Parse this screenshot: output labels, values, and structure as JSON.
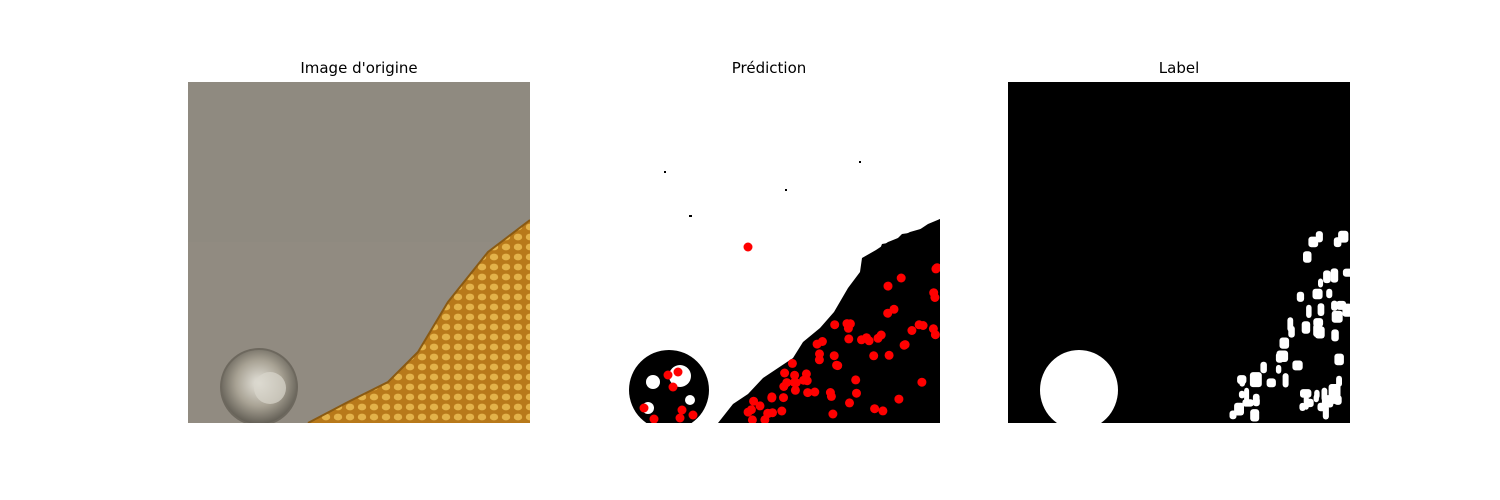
{
  "panels": [
    {
      "title": "Image d'origine"
    },
    {
      "title": "Prédiction"
    },
    {
      "title": "Label"
    }
  ],
  "colors": {
    "background_gray": "#908a80",
    "honeycomb_orange": "#c8891e",
    "mask_black": "#000000",
    "mask_white": "#ffffff",
    "marker_red": "#ff0000"
  }
}
